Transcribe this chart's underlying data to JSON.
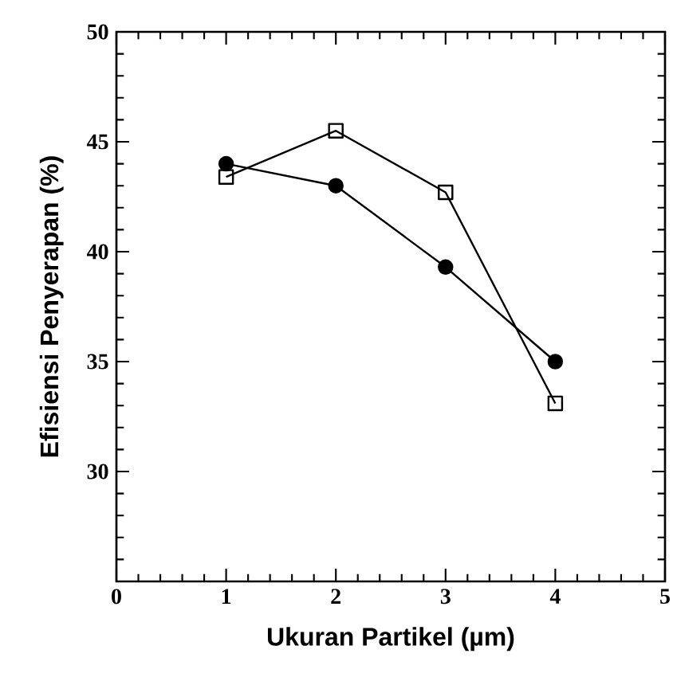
{
  "chart_data": {
    "type": "line",
    "xlabel": "Ukuran Partikel (µm)",
    "ylabel": "Efisiensi Penyerapan (%)",
    "x": [
      1,
      2,
      3,
      4
    ],
    "series": [
      {
        "color": "#000000",
        "marker": "circle",
        "values": [
          44.0,
          43.0,
          39.3,
          35.0
        ]
      },
      {
        "color": "#000000",
        "marker": "square",
        "values": [
          43.4,
          45.5,
          42.7,
          33.1
        ]
      }
    ],
    "xlim": [
      0,
      5
    ],
    "ylim": [
      25,
      50
    ],
    "xticks": [
      0,
      1,
      2,
      3,
      4,
      5
    ],
    "yticks": [
      {
        "value": 25,
        "label": null
      },
      30,
      35,
      40,
      45,
      50
    ],
    "grid": false,
    "line_style": "solid"
  }
}
